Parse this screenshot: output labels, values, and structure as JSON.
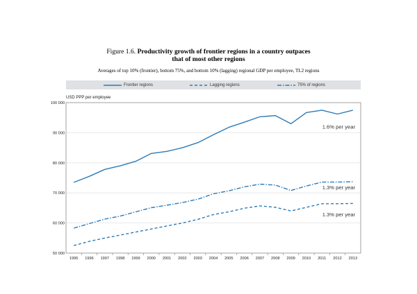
{
  "figure": {
    "number": "Figure 1.6.",
    "title_line1": "Productivity growth of frontier regions in a country outpaces",
    "title_line2": "that of most other regions",
    "subtitle": "Averages of top 10% (frontier), bottom 75%, and bottom 10% (lagging) regional GDP per employee, TL2 regions"
  },
  "colors": {
    "series": "#2a7ab8",
    "legend_bg": "#dfe1e4",
    "axis": "#888888"
  },
  "chart_data": {
    "type": "line",
    "title": "Productivity growth of frontier regions in a country outpaces that of most other regions",
    "ylabel": "USD PPP per employee",
    "xlabel": "",
    "ylim": [
      50000,
      100000
    ],
    "yticks": [
      50000,
      60000,
      70000,
      80000,
      90000,
      100000
    ],
    "ytick_labels": [
      "50 000",
      "60 000",
      "70 000",
      "80 000",
      "90 000",
      "100 000"
    ],
    "x": [
      "1995",
      "1996",
      "1997",
      "1998",
      "1999",
      "2000",
      "2001",
      "2002",
      "2003",
      "2004",
      "2005",
      "2006",
      "2007",
      "2008",
      "2009",
      "2010",
      "2011",
      "2012",
      "2013"
    ],
    "legend_position": "top",
    "series": [
      {
        "name": "Frontier regions",
        "style": "solid",
        "values": [
          73500,
          75500,
          77800,
          79000,
          80500,
          83100,
          83800,
          85000,
          86700,
          89300,
          91800,
          93500,
          95300,
          95700,
          93000,
          96700,
          97500,
          96200,
          97500
        ]
      },
      {
        "name": "Lagging regions",
        "style": "dashed",
        "values": [
          52500,
          53900,
          55000,
          56000,
          57000,
          58000,
          59000,
          60000,
          61200,
          62800,
          63700,
          64900,
          65700,
          65200,
          64000,
          65200,
          66400,
          66400,
          66500
        ]
      },
      {
        "name": "75% of regions",
        "style": "dashdot",
        "values": [
          58300,
          59800,
          61300,
          62300,
          63700,
          65100,
          65900,
          66800,
          67900,
          69700,
          70700,
          72000,
          72900,
          72600,
          70800,
          72300,
          73600,
          73600,
          73700
        ]
      }
    ],
    "annotations": [
      {
        "text": "1.6% per year",
        "series": "Frontier regions",
        "value": 92000
      },
      {
        "text": "1.3% per year",
        "series": "75% of regions",
        "value": 71900
      },
      {
        "text": "1.3% per year",
        "series": "Lagging regions",
        "value": 62900
      }
    ]
  }
}
